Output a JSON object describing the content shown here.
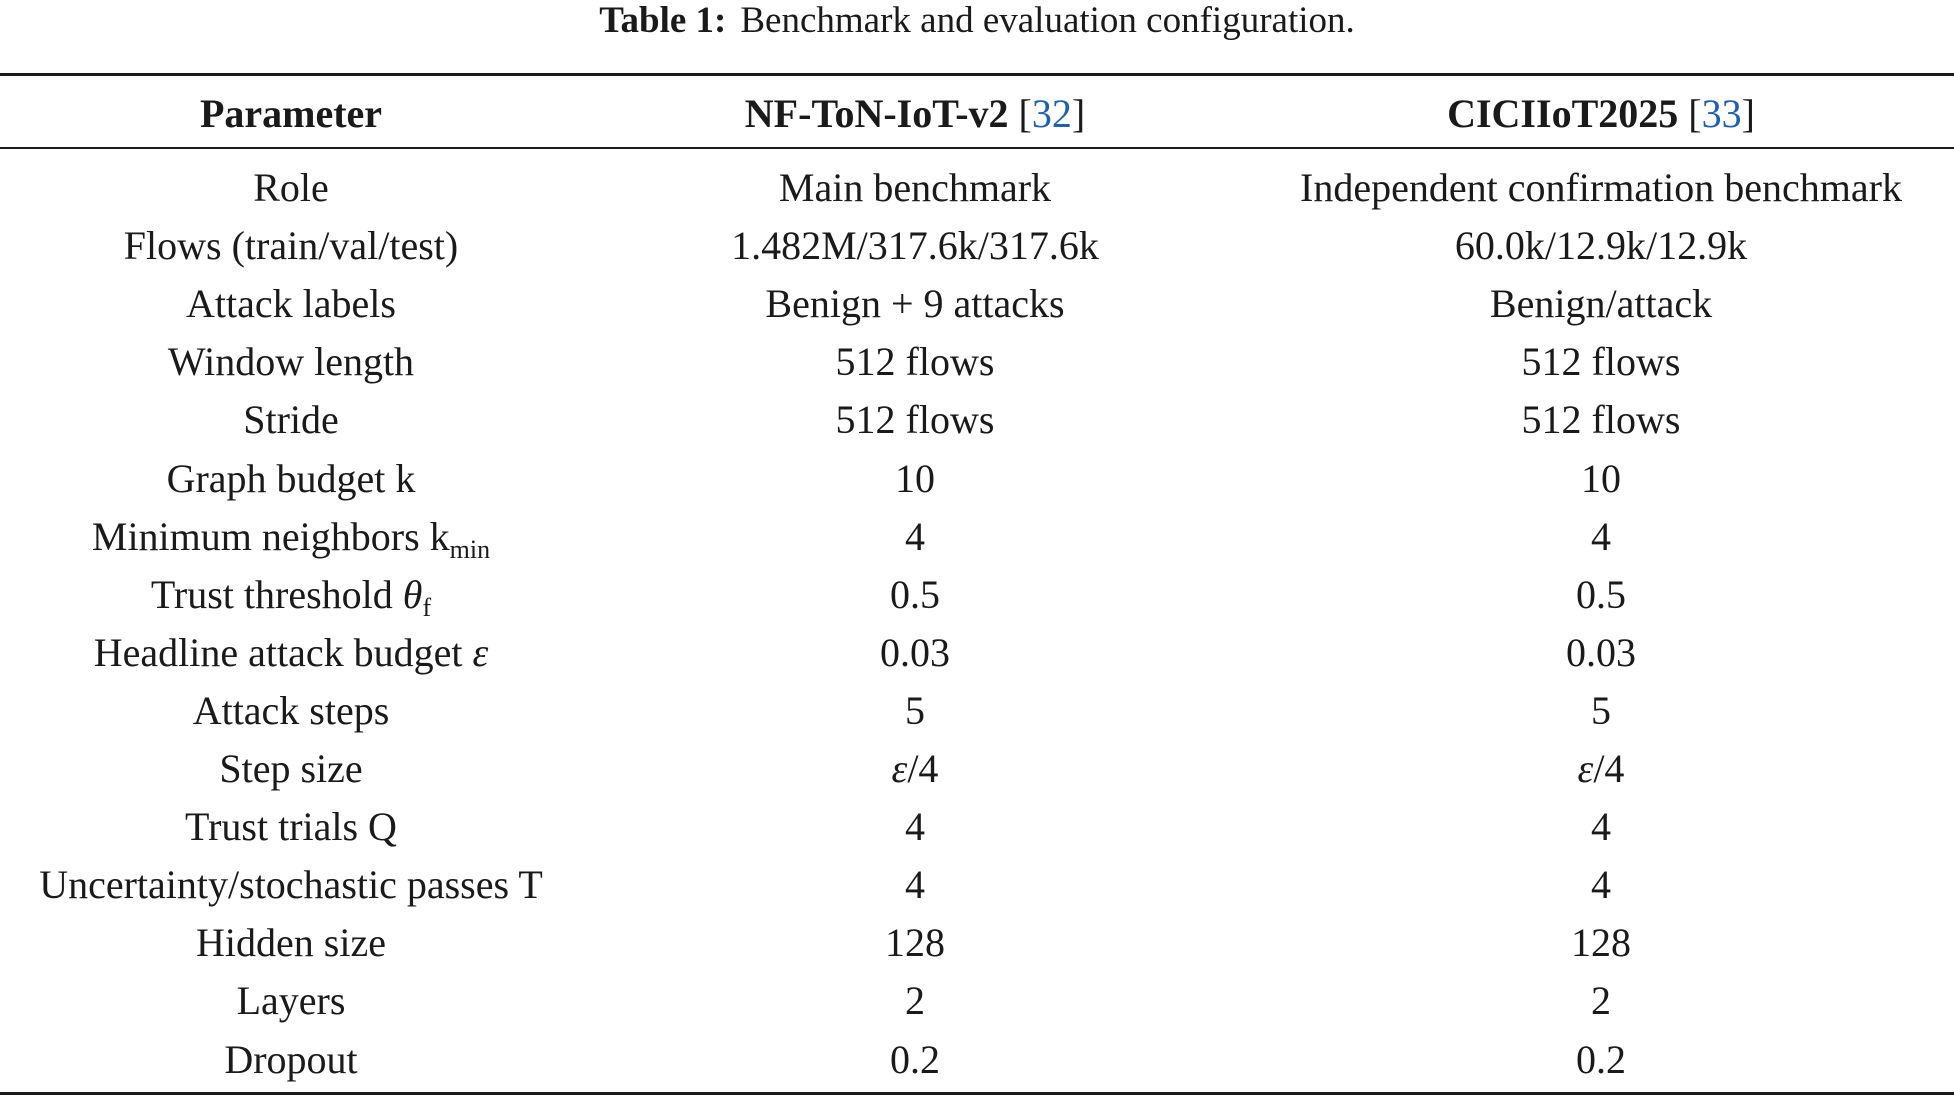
{
  "caption": {
    "label": "Table 1:",
    "text": "Benchmark and evaluation configuration."
  },
  "header": {
    "param": "Parameter",
    "nf_name": "NF-ToN-IoT-v2",
    "nf_ref": "32",
    "cic_name": "CICIIoT2025",
    "cic_ref": "33",
    "bracket_open": "[",
    "bracket_close": "]"
  },
  "rows": [
    {
      "param": "Role",
      "nf": "Main benchmark",
      "cic": "Independent confirmation benchmark"
    },
    {
      "param": "Flows (train/val/test)",
      "nf": "1.482M/317.6k/317.6k",
      "cic": "60.0k/12.9k/12.9k"
    },
    {
      "param": "Attack labels",
      "nf": "Benign + 9 attacks",
      "cic": "Benign/attack"
    },
    {
      "param": "Window length",
      "nf": "512 flows",
      "cic": "512 flows"
    },
    {
      "param": "Stride",
      "nf": "512 flows",
      "cic": "512 flows"
    },
    {
      "param": "Graph budget k",
      "nf": "10",
      "cic": "10"
    },
    {
      "param": "Minimum neighbors k",
      "param_sub": "min",
      "nf": "4",
      "cic": "4"
    },
    {
      "param": "Trust threshold ",
      "param_sym": "θ",
      "param_sub": "f",
      "nf": "0.5",
      "cic": "0.5"
    },
    {
      "param": "Headline attack budget ",
      "param_sym": "ε",
      "nf": "0.03",
      "cic": "0.03"
    },
    {
      "param": "Attack steps",
      "nf": "5",
      "cic": "5"
    },
    {
      "param": "Step size",
      "nf_sym": "ε",
      "nf": "/4",
      "cic_sym": "ε",
      "cic": "/4"
    },
    {
      "param": "Trust trials Q",
      "nf": "4",
      "cic": "4"
    },
    {
      "param": "Uncertainty/stochastic passes T",
      "nf": "4",
      "cic": "4"
    },
    {
      "param": "Hidden size",
      "nf": "128",
      "cic": "128"
    },
    {
      "param": "Layers",
      "nf": "2",
      "cic": "2"
    },
    {
      "param": "Dropout",
      "nf": "0.2",
      "cic": "0.2"
    }
  ],
  "colors": {
    "reference_link": "#1f5fb0",
    "text": "#1a1a1a"
  }
}
